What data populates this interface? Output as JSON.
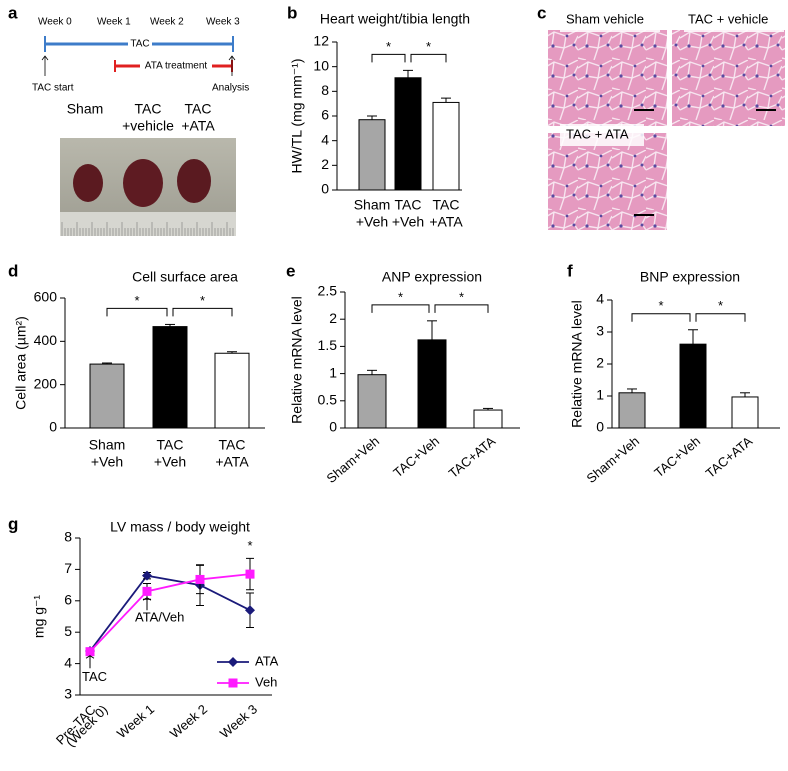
{
  "timeline": {
    "panel": "a",
    "weeks": [
      "Week 0",
      "Week 1",
      "Week 2",
      "Week 3"
    ],
    "tac": "TAC",
    "ata": "ATA treatment",
    "start": "TAC start",
    "end": "Analysis",
    "photo_labels": [
      [
        "Sham"
      ],
      [
        "TAC",
        "+vehicle"
      ],
      [
        "TAC",
        "+ATA"
      ]
    ]
  },
  "histology": {
    "panel": "c",
    "images": [
      "Sham vehicle",
      "TAC + vehicle",
      "TAC + ATA"
    ]
  },
  "chart_data": [
    {
      "type": "bar",
      "panel": "b",
      "title": "Heart weight/tibia length",
      "ylabel": "HW/TL (mg mm⁻¹)",
      "categories": [
        [
          "Sham",
          "+Veh"
        ],
        [
          "TAC",
          "+Veh"
        ],
        [
          "TAC",
          "+ATA"
        ]
      ],
      "values": [
        5.7,
        9.1,
        7.1
      ],
      "errors": [
        0.3,
        0.6,
        0.35
      ],
      "colors": [
        "#a6a6a6",
        "#000000",
        "#ffffff"
      ],
      "ylim": [
        0,
        12
      ],
      "yticks": [
        0,
        2,
        4,
        6,
        8,
        10,
        12
      ],
      "annotations": [
        "*",
        "*"
      ]
    },
    {
      "type": "bar",
      "panel": "d",
      "title": "Cell surface area",
      "ylabel": "Cell area (µm²)",
      "categories": [
        [
          "Sham",
          "+Veh"
        ],
        [
          "TAC",
          "+Veh"
        ],
        [
          "TAC",
          "+ATA"
        ]
      ],
      "values": [
        295,
        468,
        345
      ],
      "errors": [
        5,
        10,
        7
      ],
      "colors": [
        "#a6a6a6",
        "#000000",
        "#ffffff"
      ],
      "ylim": [
        0,
        600
      ],
      "yticks": [
        0,
        200,
        400,
        600
      ],
      "annotations": [
        "*",
        "*"
      ]
    },
    {
      "type": "bar",
      "panel": "e",
      "title": "ANP expression",
      "ylabel": "Relative mRNA level",
      "categories": [
        "Sham+Veh",
        "TAC+Veh",
        "TAC+ATA"
      ],
      "values": [
        0.98,
        1.62,
        0.33
      ],
      "errors": [
        0.08,
        0.35,
        0.03
      ],
      "colors": [
        "#a6a6a6",
        "#000000",
        "#ffffff"
      ],
      "ylim": [
        0,
        2.5
      ],
      "yticks": [
        0,
        0.5,
        1,
        1.5,
        2,
        2.5
      ],
      "annotations": [
        "*",
        "*"
      ]
    },
    {
      "type": "bar",
      "panel": "f",
      "title": "BNP expression",
      "ylabel": "Relative mRNA level",
      "categories": [
        "Sham+Veh",
        "TAC+Veh",
        "TAC+ATA"
      ],
      "values": [
        1.1,
        2.62,
        0.97
      ],
      "errors": [
        0.12,
        0.45,
        0.13
      ],
      "colors": [
        "#a6a6a6",
        "#000000",
        "#ffffff"
      ],
      "ylim": [
        0,
        4
      ],
      "yticks": [
        0,
        1,
        2,
        3,
        4
      ],
      "annotations": [
        "*",
        "*"
      ]
    },
    {
      "type": "line",
      "panel": "g",
      "title": "LV mass / body weight",
      "ylabel": "mg g⁻¹",
      "categories": [
        [
          "Pre-TAC",
          "(Week 0)"
        ],
        "Week 1",
        "Week 2",
        "Week 3"
      ],
      "series": [
        {
          "name": "ATA",
          "color": "#1a1a7a",
          "values": [
            4.4,
            6.8,
            6.5,
            5.7
          ],
          "errors": [
            0.05,
            0.1,
            0.65,
            0.55
          ]
        },
        {
          "name": "Veh",
          "color": "#ff1aff",
          "values": [
            4.38,
            6.3,
            6.68,
            6.85
          ],
          "errors": [
            0.05,
            0.25,
            0.45,
            0.5
          ]
        }
      ],
      "ylim": [
        3,
        8
      ],
      "yticks": [
        3,
        4,
        5,
        6,
        7,
        8
      ],
      "annotations": [
        "TAC",
        "ATA/Veh",
        "*"
      ],
      "legend": "lower right"
    }
  ]
}
